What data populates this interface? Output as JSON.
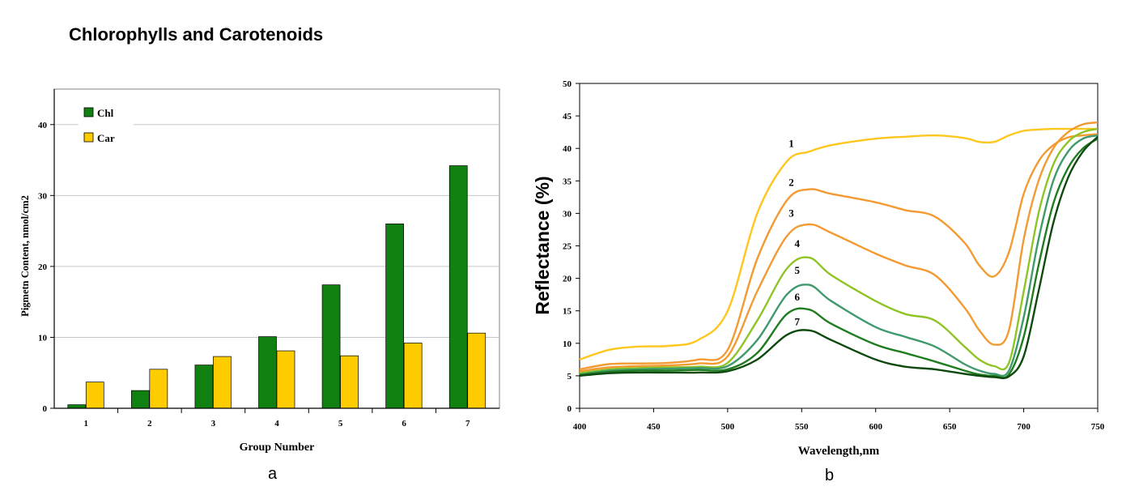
{
  "page_title": "Chlorophylls and Carotenoids",
  "panels": {
    "a": "a",
    "b": "b"
  },
  "colors": {
    "chl": "#108010",
    "car": "#ffcc00",
    "curves": [
      "#ffc61e",
      "#f39a32",
      "#f39a32",
      "#8fc425",
      "#3f9a6e",
      "#1f7c1f",
      "#0e4a0e"
    ]
  },
  "chart_data": [
    {
      "type": "bar",
      "categories": [
        "1",
        "2",
        "3",
        "4",
        "5",
        "6",
        "7"
      ],
      "series": [
        {
          "name": "Chl",
          "values": [
            0.5,
            2.5,
            6.1,
            10.1,
            17.4,
            26.0,
            34.2
          ]
        },
        {
          "name": "Car",
          "values": [
            3.7,
            5.5,
            7.3,
            8.1,
            7.4,
            9.2,
            10.6
          ]
        }
      ],
      "title": "",
      "xlabel": "Group Number",
      "ylabel": "Pigmetn Content, nmol/cm2",
      "ylim": [
        0,
        45
      ],
      "yticks": [
        0,
        10,
        20,
        30,
        40
      ],
      "grid": true,
      "legend": "top-left"
    },
    {
      "type": "line",
      "title": "",
      "xlabel": "Wavelength,nm",
      "ylabel": "Reflectance (%)",
      "xlim": [
        400,
        750
      ],
      "ylim": [
        0,
        50
      ],
      "xticks": [
        400,
        450,
        500,
        550,
        600,
        650,
        700,
        750
      ],
      "yticks": [
        0,
        5,
        10,
        15,
        20,
        25,
        30,
        35,
        40,
        45,
        50
      ],
      "grid": false,
      "x": [
        400,
        420,
        440,
        460,
        480,
        500,
        520,
        540,
        555,
        570,
        600,
        620,
        640,
        660,
        670,
        680,
        690,
        700,
        710,
        720,
        730,
        740,
        750
      ],
      "series": [
        {
          "name": "1",
          "values": [
            7.5,
            9.0,
            9.5,
            9.6,
            10.5,
            15.0,
            30.0,
            38.0,
            39.5,
            40.5,
            41.5,
            41.8,
            42.0,
            41.6,
            41.0,
            41.0,
            42.0,
            42.7,
            42.9,
            43.0,
            43.0,
            43.0,
            43.0
          ]
        },
        {
          "name": "2",
          "values": [
            6.0,
            6.8,
            6.9,
            7.0,
            7.5,
            9.0,
            23.0,
            32.0,
            33.7,
            33.0,
            31.7,
            30.5,
            29.5,
            25.5,
            22.0,
            20.3,
            24.0,
            33.0,
            38.0,
            40.5,
            41.7,
            42.0,
            42.2
          ]
        },
        {
          "name": "3",
          "values": [
            5.7,
            6.3,
            6.5,
            6.6,
            6.9,
            8.0,
            18.0,
            26.5,
            28.3,
            27.0,
            23.8,
            22.0,
            20.5,
            15.5,
            12.0,
            9.8,
            12.0,
            26.0,
            35.0,
            40.0,
            42.5,
            43.7,
            44.0
          ]
        },
        {
          "name": "4",
          "values": [
            5.4,
            6.0,
            6.2,
            6.3,
            6.4,
            7.0,
            13.5,
            21.5,
            23.2,
            20.5,
            16.5,
            14.5,
            13.5,
            9.5,
            7.5,
            6.5,
            7.0,
            18.0,
            30.0,
            37.5,
            41.0,
            42.5,
            43.0
          ]
        },
        {
          "name": "5",
          "values": [
            5.2,
            5.8,
            6.0,
            6.1,
            6.2,
            6.5,
            10.5,
            17.5,
            19.0,
            16.5,
            12.5,
            11.0,
            9.5,
            6.8,
            5.8,
            5.3,
            5.8,
            14.0,
            26.0,
            35.0,
            39.5,
            41.5,
            42.0
          ]
        },
        {
          "name": "6",
          "values": [
            5.1,
            5.6,
            5.8,
            5.8,
            5.9,
            6.0,
            8.5,
            14.5,
            15.2,
            13.0,
            9.8,
            8.5,
            7.2,
            5.8,
            5.2,
            5.0,
            5.2,
            11.0,
            22.0,
            31.5,
            37.0,
            40.0,
            41.5
          ]
        },
        {
          "name": "7",
          "values": [
            5.0,
            5.4,
            5.5,
            5.5,
            5.5,
            5.7,
            7.5,
            11.3,
            12.0,
            10.5,
            7.5,
            6.4,
            6.0,
            5.3,
            5.0,
            4.8,
            4.9,
            8.0,
            18.0,
            28.5,
            35.5,
            39.5,
            41.8
          ]
        }
      ],
      "curve_labels": [
        {
          "text": "1",
          "x": 543,
          "y": 40.2
        },
        {
          "text": "2",
          "x": 543,
          "y": 34.2
        },
        {
          "text": "3",
          "x": 543,
          "y": 29.5
        },
        {
          "text": "4",
          "x": 547,
          "y": 24.8
        },
        {
          "text": "5",
          "x": 547,
          "y": 20.7
        },
        {
          "text": "6",
          "x": 547,
          "y": 16.6
        },
        {
          "text": "7",
          "x": 547,
          "y": 12.8
        }
      ]
    }
  ]
}
